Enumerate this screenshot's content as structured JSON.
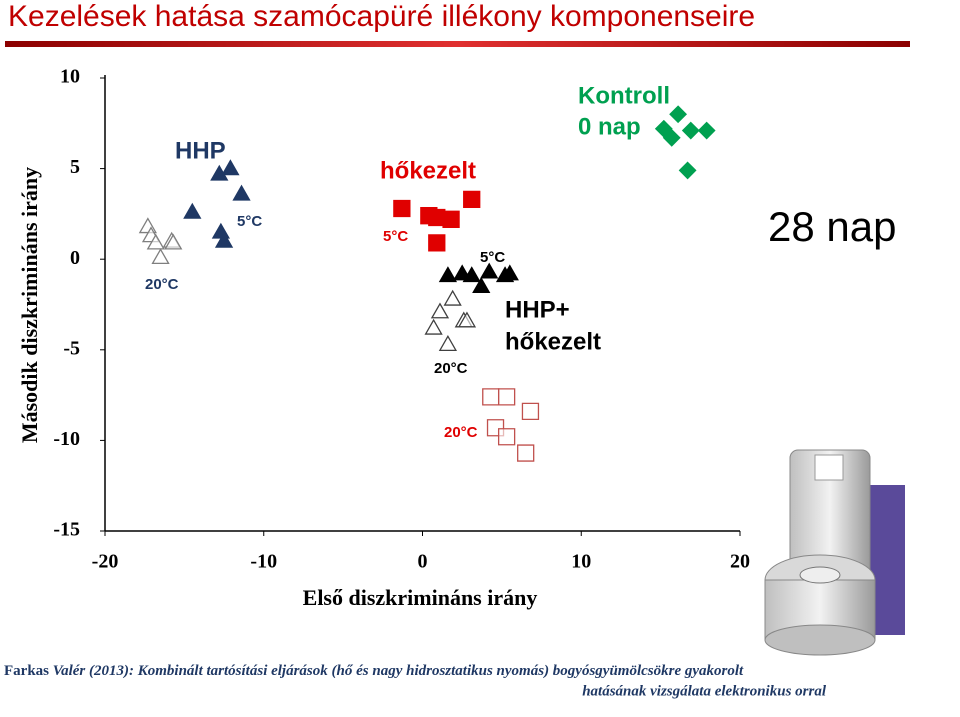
{
  "chart_data": {
    "type": "scatter",
    "title": "Kezelések hatása szamócapüré illékony komponenseire",
    "x_label": "Első diszkrimináns irány",
    "y_label": "Második diszkrimináns irány",
    "xlim": [
      -20,
      20
    ],
    "xticks": [
      -20,
      -10,
      0,
      10,
      20
    ],
    "ylim": [
      -15,
      10
    ],
    "yticks": [
      -15,
      -10,
      -5,
      0,
      5,
      10
    ],
    "series": [
      {
        "color": "#00a050",
        "marker": "diamond",
        "filled": true,
        "x": [
          16.1,
          15.2,
          15.7,
          16.9,
          17.9,
          16.7
        ],
        "y": [
          8.0,
          7.2,
          6.7,
          7.1,
          7.1,
          4.9
        ]
      },
      {
        "color": "#1f3864",
        "marker": "triangle",
        "filled": true,
        "x": [
          -12.8,
          -12.1,
          -11.4,
          -14.5,
          -12.7,
          -12.5
        ],
        "y": [
          4.7,
          5.0,
          3.6,
          2.6,
          1.5,
          1.0
        ]
      },
      {
        "color": "#7f7f7f",
        "marker": "triangle",
        "filled": false,
        "x": [
          -17.3,
          -17.1,
          -16.8,
          -16.5,
          -15.8,
          -15.7
        ],
        "y": [
          1.8,
          1.3,
          0.9,
          0.1,
          1.0,
          0.9
        ]
      },
      {
        "color": "#e00000",
        "marker": "square",
        "filled": true,
        "x": [
          -1.3,
          0.4,
          0.9,
          1.8,
          3.1,
          0.9
        ],
        "y": [
          2.8,
          2.4,
          2.3,
          2.2,
          3.3,
          0.9
        ]
      },
      {
        "color": "#000000",
        "marker": "triangle",
        "filled": true,
        "x": [
          1.6,
          2.5,
          3.1,
          3.7,
          4.2,
          5.2,
          5.5
        ],
        "y": [
          -0.9,
          -0.8,
          -0.9,
          -1.5,
          -0.7,
          -0.9,
          -0.8
        ]
      },
      {
        "color": "#404040",
        "marker": "triangle",
        "filled": false,
        "x": [
          1.9,
          1.1,
          0.7,
          2.6,
          2.8,
          1.6
        ],
        "y": [
          -2.2,
          -2.9,
          -3.8,
          -3.4,
          -3.4,
          -4.7
        ]
      },
      {
        "color": "#c0504d",
        "marker": "square",
        "filled": false,
        "x": [
          4.3,
          5.3,
          6.8,
          4.6,
          5.3,
          6.5
        ],
        "y": [
          -7.6,
          -7.6,
          -8.4,
          -9.3,
          -9.8,
          -10.7
        ]
      }
    ],
    "annotations": [
      {
        "text": "HHP",
        "color": "#1f3864"
      },
      {
        "text": "5°C",
        "color": "#1f3864"
      },
      {
        "text": "20°C",
        "color": "#1f3864"
      },
      {
        "text": "hőkezelt",
        "color": "#e00000"
      },
      {
        "text": "5°C",
        "color": "#e00000"
      },
      {
        "text": "Kontroll",
        "color": "#00a050"
      },
      {
        "text": "0 nap",
        "color": "#00a050"
      },
      {
        "text": "5°C",
        "color": "#000000"
      },
      {
        "text": "HHP+",
        "color": "#000000"
      },
      {
        "text": "hőkezelt",
        "color": "#000000"
      },
      {
        "text": "20°C",
        "color": "#000000"
      },
      {
        "text": "20°C",
        "color": "#e00000"
      },
      {
        "text": "28 nap",
        "color": "#000000"
      }
    ],
    "citation": [
      "Farkas",
      "Valér (2013): Kombinált tartósítási eljárások (hő és nagy hidrosztatikus nyomás) bogyósgyümölcsökre gyakorolt",
      "hatásának vizsgálata elektronikus orral"
    ]
  }
}
